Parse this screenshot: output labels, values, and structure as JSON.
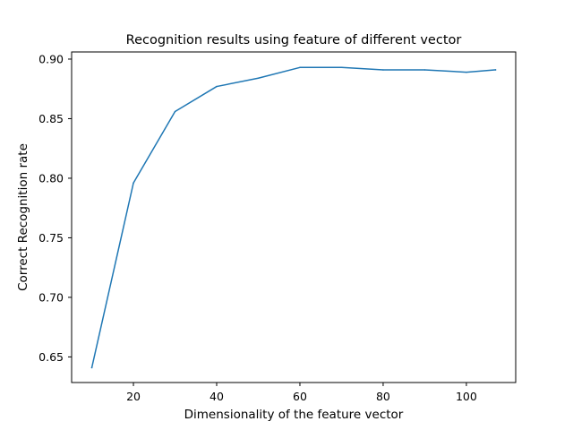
{
  "chart_data": {
    "type": "line",
    "title": "Recognition results using feature of different vector",
    "xlabel": "Dimensionality of the feature vector",
    "ylabel": "Correct Recognition rate",
    "xlim": [
      5.15,
      111.85
    ],
    "ylim": [
      0.6285,
      0.906
    ],
    "xticks": [
      20,
      40,
      60,
      80,
      100
    ],
    "xtick_labels": [
      "20",
      "40",
      "60",
      "80",
      "100"
    ],
    "yticks": [
      0.65,
      0.7,
      0.75,
      0.8,
      0.85,
      0.9
    ],
    "ytick_labels": [
      "0.65",
      "0.70",
      "0.75",
      "0.80",
      "0.85",
      "0.90"
    ],
    "grid": false,
    "series": [
      {
        "color": "#1f77b4",
        "x": [
          10,
          20,
          30,
          40,
          50,
          60,
          70,
          80,
          90,
          100,
          107
        ],
        "y": [
          0.641,
          0.796,
          0.856,
          0.877,
          0.884,
          0.893,
          0.893,
          0.891,
          0.891,
          0.889,
          0.891
        ]
      }
    ]
  }
}
